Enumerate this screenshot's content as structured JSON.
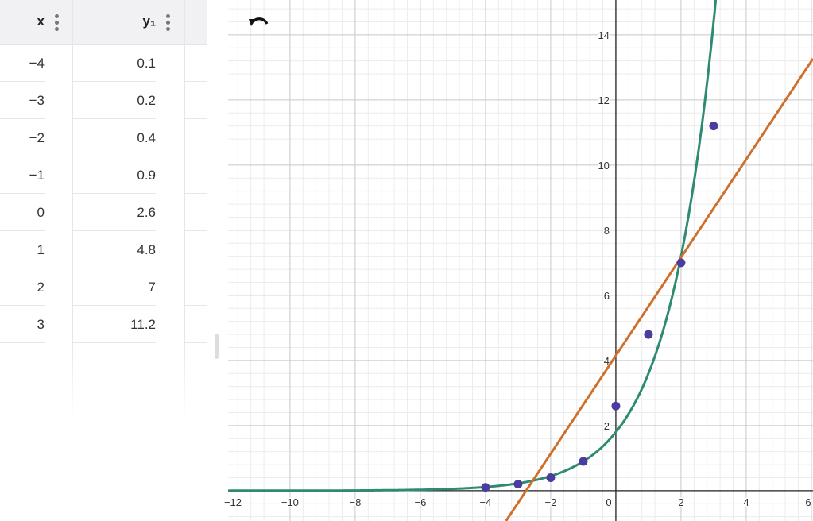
{
  "table": {
    "headers": [
      "x",
      "y₁"
    ],
    "rows": [
      [
        "−4",
        "0.1"
      ],
      [
        "−3",
        "0.2"
      ],
      [
        "−2",
        "0.4"
      ],
      [
        "−1",
        "0.9"
      ],
      [
        "0",
        "2.6"
      ],
      [
        "1",
        "4.8"
      ],
      [
        "2",
        "7"
      ],
      [
        "3",
        "11.2"
      ]
    ]
  },
  "toolbar": {
    "undo_icon": "undo-arrow-icon"
  },
  "colors": {
    "points": "#4b3ca0",
    "exponential_curve": "#2e8a72",
    "linear_line": "#cf6f2c",
    "axis": "#222222",
    "grid_major": "#c8c8c8",
    "grid_minor": "#ececec"
  },
  "chart_data": {
    "type": "scatter",
    "points": {
      "x": [
        -4,
        -3,
        -2,
        -1,
        0,
        1,
        2,
        3
      ],
      "y": [
        0.1,
        0.2,
        0.4,
        0.9,
        2.6,
        4.8,
        7,
        11.2
      ]
    },
    "curves": [
      {
        "kind": "exponential",
        "a": 1.8,
        "b": 2
      },
      {
        "kind": "linear",
        "slope": 1.507,
        "intercept": 4.15
      }
    ],
    "xlim": [
      -11.9,
      6.05
    ],
    "ylim": [
      -0.93,
      15.07
    ],
    "x_ticks": [
      "−12",
      "−10",
      "−8",
      "−6",
      "−4",
      "−2",
      "0",
      "2",
      "4",
      "6"
    ],
    "y_ticks": [
      "2",
      "4",
      "6",
      "8",
      "10",
      "12",
      "14"
    ],
    "grid": true
  }
}
